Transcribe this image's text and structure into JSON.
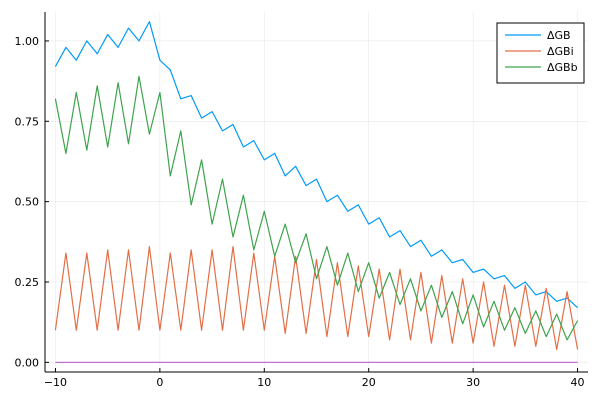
{
  "chart_data": {
    "type": "line",
    "title": "",
    "xlabel": "",
    "ylabel": "",
    "xlim": [
      -11,
      41
    ],
    "ylim": [
      -0.03,
      1.09
    ],
    "x_ticks": [
      -10,
      0,
      10,
      20,
      30,
      40
    ],
    "x_tick_labels": [
      "−10",
      "0",
      "10",
      "20",
      "30",
      "40"
    ],
    "y_ticks": [
      0.0,
      0.25,
      0.5,
      0.75,
      1.0
    ],
    "y_tick_labels": [
      "0.00",
      "0.25",
      "0.50",
      "0.75",
      "1.00"
    ],
    "grid": true,
    "legend_position": "top-right",
    "x": [
      -10,
      -9,
      -8,
      -7,
      -6,
      -5,
      -4,
      -3,
      -2,
      -1,
      0,
      1,
      2,
      3,
      4,
      5,
      6,
      7,
      8,
      9,
      10,
      11,
      12,
      13,
      14,
      15,
      16,
      17,
      18,
      19,
      20,
      21,
      22,
      23,
      24,
      25,
      26,
      27,
      28,
      29,
      30,
      31,
      32,
      33,
      34,
      35,
      36,
      37,
      38,
      39,
      40
    ],
    "series": [
      {
        "name": "ΔGB",
        "color": "#009af9",
        "in_legend": true,
        "values": [
          0.92,
          0.98,
          0.94,
          1.0,
          0.96,
          1.02,
          0.98,
          1.04,
          1.0,
          1.06,
          0.94,
          0.91,
          0.82,
          0.83,
          0.76,
          0.78,
          0.72,
          0.74,
          0.67,
          0.69,
          0.63,
          0.65,
          0.58,
          0.61,
          0.55,
          0.57,
          0.5,
          0.52,
          0.47,
          0.49,
          0.43,
          0.45,
          0.39,
          0.41,
          0.36,
          0.38,
          0.33,
          0.35,
          0.31,
          0.32,
          0.28,
          0.29,
          0.26,
          0.27,
          0.23,
          0.25,
          0.21,
          0.22,
          0.19,
          0.2,
          0.17
        ]
      },
      {
        "name": "ΔGBi",
        "color": "#e26f46",
        "in_legend": true,
        "values": [
          0.1,
          0.34,
          0.1,
          0.34,
          0.1,
          0.35,
          0.1,
          0.35,
          0.1,
          0.36,
          0.1,
          0.34,
          0.1,
          0.35,
          0.1,
          0.35,
          0.1,
          0.36,
          0.1,
          0.34,
          0.1,
          0.33,
          0.09,
          0.33,
          0.09,
          0.32,
          0.08,
          0.31,
          0.08,
          0.3,
          0.08,
          0.29,
          0.07,
          0.29,
          0.07,
          0.28,
          0.06,
          0.27,
          0.06,
          0.26,
          0.06,
          0.25,
          0.05,
          0.24,
          0.05,
          0.24,
          0.05,
          0.23,
          0.04,
          0.22,
          0.04
        ]
      },
      {
        "name": "ΔGBb",
        "color": "#3da44d",
        "in_legend": true,
        "values": [
          0.82,
          0.65,
          0.84,
          0.66,
          0.86,
          0.67,
          0.87,
          0.68,
          0.89,
          0.71,
          0.84,
          0.58,
          0.72,
          0.49,
          0.63,
          0.43,
          0.57,
          0.39,
          0.52,
          0.35,
          0.47,
          0.33,
          0.43,
          0.31,
          0.4,
          0.26,
          0.36,
          0.24,
          0.34,
          0.22,
          0.31,
          0.2,
          0.28,
          0.18,
          0.26,
          0.16,
          0.24,
          0.14,
          0.22,
          0.12,
          0.21,
          0.11,
          0.19,
          0.1,
          0.17,
          0.09,
          0.16,
          0.08,
          0.15,
          0.07,
          0.13
        ]
      },
      {
        "name": "",
        "color": "#c271d2",
        "in_legend": false,
        "values": [
          0,
          0,
          0,
          0,
          0,
          0,
          0,
          0,
          0,
          0,
          0,
          0,
          0,
          0,
          0,
          0,
          0,
          0,
          0,
          0,
          0,
          0,
          0,
          0,
          0,
          0,
          0,
          0,
          0,
          0,
          0,
          0,
          0,
          0,
          0,
          0,
          0,
          0,
          0,
          0,
          0,
          0,
          0,
          0,
          0,
          0,
          0,
          0,
          0,
          0,
          0
        ]
      }
    ]
  }
}
